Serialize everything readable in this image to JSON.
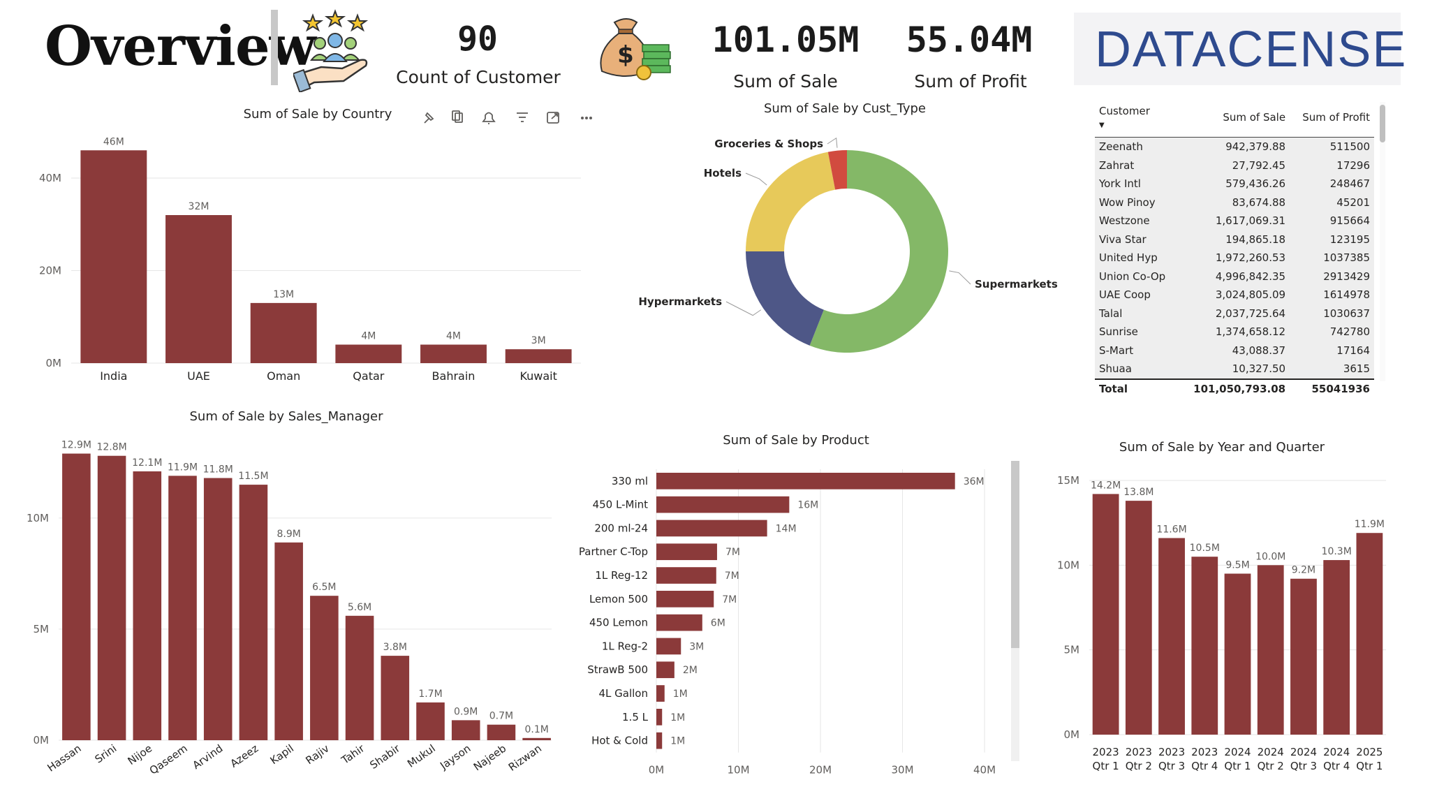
{
  "header": {
    "title": "Overview",
    "kpis": [
      {
        "value": "90",
        "label": "Count of Customer"
      },
      {
        "value": "101.05M",
        "label": "Sum of Sale"
      },
      {
        "value": "55.04M",
        "label": "Sum of Profit"
      }
    ],
    "logo_text": "DATACENSE",
    "icons": [
      "customers-hand-icon",
      "money-bag-icon"
    ]
  },
  "visual_toolbar": [
    "pin-icon",
    "copy-icon",
    "bell-icon",
    "filter-icon",
    "focus-mode-icon",
    "more-options-icon"
  ],
  "colors": {
    "bar": "#8B3A3A",
    "supermarkets": "#84B867",
    "hypermarkets": "#4E5787",
    "hotels": "#E7C95A",
    "groceries": "#D14B3F",
    "logo": "#2e4a8e"
  },
  "table": {
    "headers": [
      "Customer",
      "Sum of Sale",
      "Sum of Profit"
    ],
    "rows": [
      [
        "Zeenath",
        "942,379.88",
        "511500"
      ],
      [
        "Zahrat",
        "27,792.45",
        "17296"
      ],
      [
        "York Intl",
        "579,436.26",
        "248467"
      ],
      [
        "Wow Pinoy",
        "83,674.88",
        "45201"
      ],
      [
        "Westzone",
        "1,617,069.31",
        "915664"
      ],
      [
        "Viva Star",
        "194,865.18",
        "123195"
      ],
      [
        "United Hyp",
        "1,972,260.53",
        "1037385"
      ],
      [
        "Union Co-Op",
        "4,996,842.35",
        "2913429"
      ],
      [
        "UAE Coop",
        "3,024,805.09",
        "1614978"
      ],
      [
        "Talal",
        "2,037,725.64",
        "1030637"
      ],
      [
        "Sunrise",
        "1,374,658.12",
        "742780"
      ],
      [
        "S-Mart",
        "43,088.37",
        "17164"
      ],
      [
        "Shuaa",
        "10,327.50",
        "3615"
      ]
    ],
    "total": [
      "Total",
      "101,050,793.08",
      "55041936"
    ]
  },
  "chart_data": [
    {
      "type": "bar",
      "title": "Sum of Sale by Country",
      "categories": [
        "India",
        "UAE",
        "Oman",
        "Qatar",
        "Bahrain",
        "Kuwait"
      ],
      "values": [
        46,
        32,
        13,
        4,
        4,
        3
      ],
      "labels": [
        "46M",
        "32M",
        "13M",
        "4M",
        "4M",
        "3M"
      ],
      "yticks": [
        "0M",
        "20M",
        "40M"
      ],
      "ylim": [
        0,
        48
      ],
      "grid": true
    },
    {
      "type": "pie",
      "title": "Sum of Sale by Cust_Type",
      "categories": [
        "Supermarkets",
        "Hypermarkets",
        "Hotels",
        "Groceries & Shops"
      ],
      "values": [
        56,
        19,
        22,
        3
      ]
    },
    {
      "type": "bar",
      "title": "Sum of Sale by Sales_Manager",
      "categories": [
        "Hassan",
        "Srini",
        "Nijoe",
        "Qaseem",
        "Arvind",
        "Azeez",
        "Kapil",
        "Rajiv",
        "Tahir",
        "Shabir",
        "Mukul",
        "Jayson",
        "Najeeb",
        "Rizwan"
      ],
      "values": [
        12.9,
        12.8,
        12.1,
        11.9,
        11.8,
        11.5,
        8.9,
        6.5,
        5.6,
        3.8,
        1.7,
        0.9,
        0.7,
        0.1
      ],
      "labels": [
        "12.9M",
        "12.8M",
        "12.1M",
        "11.9M",
        "11.8M",
        "11.5M",
        "8.9M",
        "6.5M",
        "5.6M",
        "3.8M",
        "1.7M",
        "0.9M",
        "0.7M",
        "0.1M"
      ],
      "yticks": [
        "0M",
        "5M",
        "10M"
      ],
      "ylim": [
        0,
        13.2
      ],
      "grid": true
    },
    {
      "type": "bar",
      "orientation": "horizontal",
      "title": "Sum of Sale by Product",
      "categories": [
        "330 ml",
        "450 L-Mint",
        "200 ml-24",
        "Partner C-Top",
        "1L Reg-12",
        "Lemon 500",
        "450 Lemon",
        "1L Reg-2",
        "StrawB 500",
        "4L Gallon",
        "1.5 L",
        "Hot & Cold"
      ],
      "values": [
        36.4,
        16.2,
        13.5,
        7.4,
        7.3,
        7.0,
        5.6,
        3.0,
        2.2,
        1.0,
        0.7,
        0.7
      ],
      "labels": [
        "36M",
        "16M",
        "14M",
        "7M",
        "7M",
        "7M",
        "6M",
        "3M",
        "2M",
        "1M",
        "1M",
        "1M"
      ],
      "xticks": [
        "0M",
        "10M",
        "20M",
        "30M",
        "40M"
      ],
      "xlim": [
        0,
        40
      ],
      "grid": true
    },
    {
      "type": "bar",
      "title": "Sum of Sale by Year and Quarter",
      "categories": [
        [
          "2023",
          "Qtr 1"
        ],
        [
          "2023",
          "Qtr 2"
        ],
        [
          "2023",
          "Qtr 3"
        ],
        [
          "2023",
          "Qtr 4"
        ],
        [
          "2024",
          "Qtr 1"
        ],
        [
          "2024",
          "Qtr 2"
        ],
        [
          "2024",
          "Qtr 3"
        ],
        [
          "2024",
          "Qtr 4"
        ],
        [
          "2025",
          "Qtr 1"
        ]
      ],
      "values": [
        14.2,
        13.8,
        11.6,
        10.5,
        9.5,
        10.0,
        9.2,
        10.3,
        11.9
      ],
      "labels": [
        "14.2M",
        "13.8M",
        "11.6M",
        "10.5M",
        "9.5M",
        "10.0M",
        "9.2M",
        "10.3M",
        "11.9M"
      ],
      "yticks": [
        "0M",
        "5M",
        "10M",
        "15M"
      ],
      "ylim": [
        0,
        15
      ],
      "grid": true
    }
  ]
}
